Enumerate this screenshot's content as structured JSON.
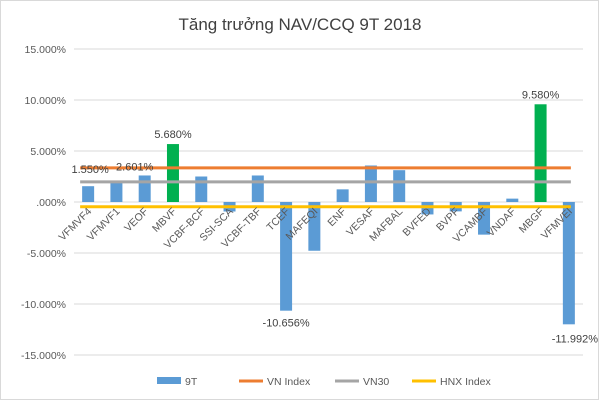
{
  "chart_data": {
    "type": "bar",
    "title": "Tăng trưởng NAV/CCQ 9T 2018",
    "xlabel": "",
    "ylabel": "",
    "ylim": [
      -15,
      15
    ],
    "yticks": [
      15,
      10,
      5,
      0,
      -5,
      -10,
      -15
    ],
    "ytick_labels": [
      "15.000%",
      "10.000%",
      "5.000%",
      ".000%",
      "-5.000%",
      "-10.000%",
      "-15.000%"
    ],
    "grid": true,
    "legend_position": "bottom",
    "categories": [
      "VFMVF4",
      "VFMVF1",
      "VEOF",
      "MBVF",
      "VCBF-BCF",
      "SSI-SCA",
      "VCBF-TBF",
      "TCEF",
      "MAFEQI",
      "ENF",
      "VESAF",
      "MAFBAL",
      "BVFED",
      "BVPF",
      "VCAMBF",
      "VNDAF",
      "MBGF",
      "VFMVEI"
    ],
    "series": [
      {
        "name": "9T",
        "type": "bar",
        "color": "#5b9bd5",
        "values": [
          1.55,
          1.88,
          2.601,
          5.68,
          2.5,
          -0.93,
          2.6,
          -10.656,
          -4.78,
          1.24,
          3.58,
          3.12,
          -1.22,
          -0.92,
          -3.2,
          0.33,
          9.58,
          -11.992
        ],
        "highlight_color": "#00b050",
        "highlighted": [
          "MBVF",
          "MBGF"
        ]
      },
      {
        "name": "VN Index",
        "type": "line",
        "color": "#ed7d31",
        "value": 3.35
      },
      {
        "name": "VN30",
        "type": "line",
        "color": "#a5a5a5",
        "value": 1.97
      },
      {
        "name": "HNX Index",
        "type": "line",
        "color": "#ffc000",
        "value": -0.47
      }
    ],
    "data_labels": [
      {
        "category": "VFMVF4",
        "text": "1.550%"
      },
      {
        "category": "VEOF",
        "text": "2.601%"
      },
      {
        "category": "MBVF",
        "text": "5.680%"
      },
      {
        "category": "TCEF",
        "text": "-10.656%"
      },
      {
        "category": "MBGF",
        "text": "9.580%"
      },
      {
        "category": "VFMVEI",
        "text": "-11.992%"
      }
    ]
  }
}
